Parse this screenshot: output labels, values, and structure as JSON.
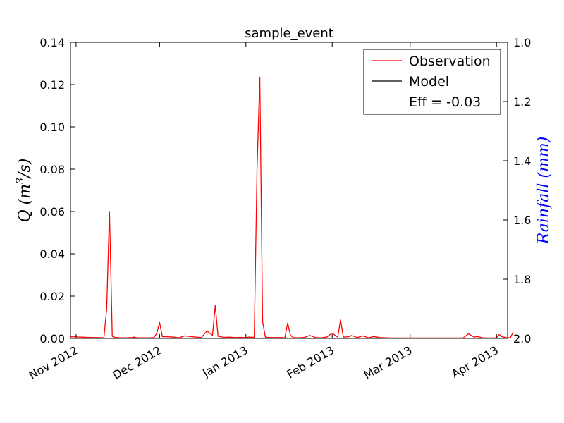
{
  "chart_data": {
    "type": "line",
    "title": "sample_event",
    "ylabel": "Q (m³/s)",
    "y2label": "Rainfall (mm)",
    "y2label_color": "#0000ff",
    "xlim": [
      "2012-10-30",
      "2013-04-05"
    ],
    "ylim": [
      0,
      0.14
    ],
    "y2lim": [
      2.0,
      1.0
    ],
    "y2_inverted": true,
    "x_tick_labels": [
      {
        "date": "2012-11-01",
        "label": "Nov 2012"
      },
      {
        "date": "2012-12-01",
        "label": "Dec 2012"
      },
      {
        "date": "2013-01-01",
        "label": "Jan 2013"
      },
      {
        "date": "2013-02-01",
        "label": "Feb 2013"
      },
      {
        "date": "2013-03-01",
        "label": "Mar 2013"
      },
      {
        "date": "2013-04-01",
        "label": "Apr 2013"
      }
    ],
    "y_ticks": [
      {
        "value": 0.0,
        "label": "0.00"
      },
      {
        "value": 0.02,
        "label": "0.02"
      },
      {
        "value": 0.04,
        "label": "0.04"
      },
      {
        "value": 0.06,
        "label": "0.06"
      },
      {
        "value": 0.08,
        "label": "0.08"
      },
      {
        "value": 0.1,
        "label": "0.10"
      },
      {
        "value": 0.12,
        "label": "0.12"
      },
      {
        "value": 0.14,
        "label": "0.14"
      }
    ],
    "y2_ticks": [
      {
        "value": 1.0,
        "label": "1.0"
      },
      {
        "value": 1.2,
        "label": "1.2"
      },
      {
        "value": 1.4,
        "label": "1.4"
      },
      {
        "value": 1.6,
        "label": "1.6"
      },
      {
        "value": 1.8,
        "label": "1.8"
      },
      {
        "value": 2.0,
        "label": "2.0"
      }
    ],
    "legend_position": "top-right",
    "legend_annotation": "Eff = -0.03",
    "grid": false,
    "series": [
      {
        "name": "Observation",
        "color": "#ff0000",
        "points": [
          [
            "2012-10-30",
            0.0008
          ],
          [
            "2012-11-01",
            0.0007
          ],
          [
            "2012-11-03",
            0.0006
          ],
          [
            "2012-11-05",
            0.0005
          ],
          [
            "2012-11-07",
            0.0004
          ],
          [
            "2012-11-09",
            0.0004
          ],
          [
            "2012-11-11",
            0.0003
          ],
          [
            "2012-11-12",
            0.014
          ],
          [
            "2012-11-13",
            0.06
          ],
          [
            "2012-11-14",
            0.001
          ],
          [
            "2012-11-15",
            0.0005
          ],
          [
            "2012-11-17",
            0.0003
          ],
          [
            "2012-11-19",
            0.0003
          ],
          [
            "2012-11-21",
            0.0004
          ],
          [
            "2012-11-22",
            0.0006
          ],
          [
            "2012-11-23",
            0.0003
          ],
          [
            "2012-11-25",
            0.0003
          ],
          [
            "2012-11-27",
            0.0003
          ],
          [
            "2012-11-29",
            0.0004
          ],
          [
            "2012-11-30",
            0.0025
          ],
          [
            "2012-12-01",
            0.0075
          ],
          [
            "2012-12-02",
            0.0008
          ],
          [
            "2012-12-04",
            0.0008
          ],
          [
            "2012-12-06",
            0.0006
          ],
          [
            "2012-12-08",
            0.0003
          ],
          [
            "2012-12-10",
            0.0012
          ],
          [
            "2012-12-12",
            0.0009
          ],
          [
            "2012-12-14",
            0.0006
          ],
          [
            "2012-12-16",
            0.0004
          ],
          [
            "2012-12-18",
            0.0035
          ],
          [
            "2012-12-20",
            0.0015
          ],
          [
            "2012-12-21",
            0.0155
          ],
          [
            "2012-12-22",
            0.001
          ],
          [
            "2012-12-24",
            0.0005
          ],
          [
            "2012-12-26",
            0.0006
          ],
          [
            "2012-12-28",
            0.0004
          ],
          [
            "2012-12-30",
            0.0005
          ],
          [
            "2013-01-01",
            0.0004
          ],
          [
            "2013-01-02",
            0.0006
          ],
          [
            "2013-01-04",
            0.0005
          ],
          [
            "2013-01-05",
            0.08
          ],
          [
            "2013-01-06",
            0.1235
          ],
          [
            "2013-01-07",
            0.008
          ],
          [
            "2013-01-08",
            0.0006
          ],
          [
            "2013-01-10",
            0.0004
          ],
          [
            "2013-01-12",
            0.0004
          ],
          [
            "2013-01-14",
            0.0004
          ],
          [
            "2013-01-15",
            0.0003
          ],
          [
            "2013-01-16",
            0.0073
          ],
          [
            "2013-01-17",
            0.0015
          ],
          [
            "2013-01-18",
            0.0004
          ],
          [
            "2013-01-20",
            0.0003
          ],
          [
            "2013-01-22",
            0.0005
          ],
          [
            "2013-01-24",
            0.0014
          ],
          [
            "2013-01-26",
            0.0004
          ],
          [
            "2013-01-28",
            0.0003
          ],
          [
            "2013-01-30",
            0.0006
          ],
          [
            "2013-02-01",
            0.0025
          ],
          [
            "2013-02-03",
            0.0006
          ],
          [
            "2013-02-04",
            0.0088
          ],
          [
            "2013-02-05",
            0.0006
          ],
          [
            "2013-02-07",
            0.0008
          ],
          [
            "2013-02-08",
            0.0014
          ],
          [
            "2013-02-10",
            0.0004
          ],
          [
            "2013-02-12",
            0.0012
          ],
          [
            "2013-02-14",
            0.0003
          ],
          [
            "2013-02-16",
            0.0009
          ],
          [
            "2013-02-18",
            0.0004
          ],
          [
            "2013-02-22",
            0.0002
          ],
          [
            "2013-03-01",
            0.0002
          ],
          [
            "2013-03-10",
            0.0002
          ],
          [
            "2013-03-20",
            0.0002
          ],
          [
            "2013-03-22",
            0.0022
          ],
          [
            "2013-03-24",
            0.0006
          ],
          [
            "2013-03-25",
            0.0009
          ],
          [
            "2013-03-27",
            0.0003
          ],
          [
            "2013-03-29",
            0.0002
          ],
          [
            "2013-03-31",
            0.0002
          ],
          [
            "2013-04-01",
            0.0003
          ],
          [
            "2013-04-02",
            0.0018
          ],
          [
            "2013-04-03",
            0.0008
          ],
          [
            "2013-04-04",
            0.0005
          ],
          [
            "2013-04-05",
            0.0003
          ],
          [
            "2013-04-06",
            0.0004
          ],
          [
            "2013-04-07",
            0.003
          ]
        ]
      },
      {
        "name": "Model",
        "color": "#000000",
        "points": []
      }
    ]
  }
}
